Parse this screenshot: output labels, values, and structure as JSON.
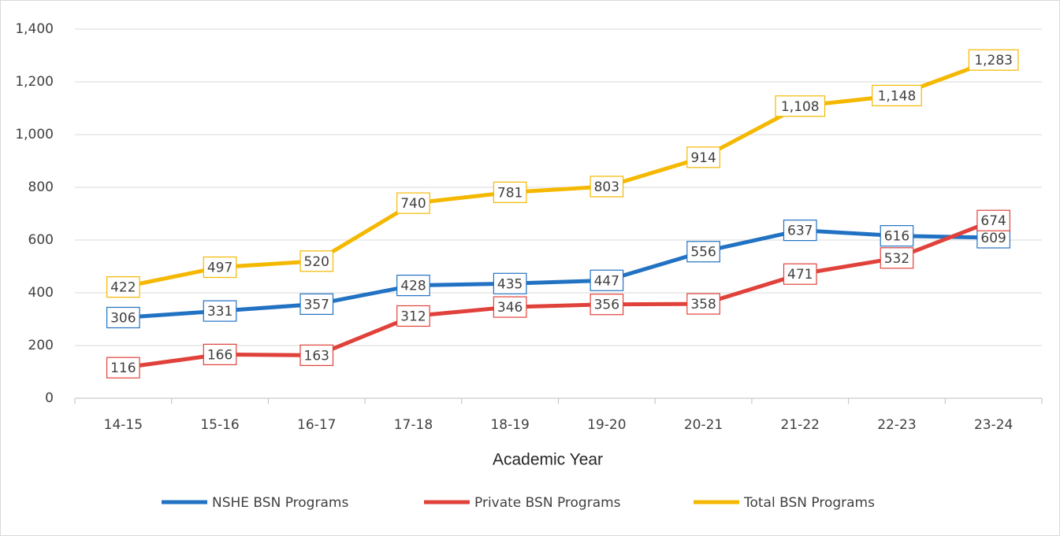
{
  "chart_data": {
    "type": "line",
    "x_label": "Academic Year",
    "categories": [
      "14-15",
      "15-16",
      "16-17",
      "17-18",
      "18-19",
      "19-20",
      "20-21",
      "21-22",
      "22-23",
      "23-24"
    ],
    "series": [
      {
        "name": "NSHE BSN Programs",
        "color": "#2272c3",
        "values": [
          306,
          331,
          357,
          428,
          435,
          447,
          556,
          637,
          616,
          609
        ]
      },
      {
        "name": "Private BSN Programs",
        "color": "#e0413a",
        "values": [
          116,
          166,
          163,
          312,
          346,
          356,
          358,
          471,
          532,
          674
        ]
      },
      {
        "name": "Total BSN Programs",
        "color": "#f5b800",
        "values": [
          422,
          497,
          520,
          740,
          781,
          803,
          914,
          1108,
          1148,
          1283
        ],
        "value_labels": [
          "422",
          "497",
          "520",
          "740",
          "781",
          "803",
          "914",
          "1,108",
          "1,148",
          "1,283"
        ]
      }
    ],
    "ylim": [
      0,
      1400
    ],
    "yticks": [
      0,
      200,
      400,
      600,
      800,
      {
        "value": 1000,
        "label": "1,000"
      },
      {
        "value": 1200,
        "label": "1,200"
      },
      {
        "value": 1400,
        "label": "1,400"
      }
    ],
    "grid": true,
    "legend": "bottom"
  }
}
